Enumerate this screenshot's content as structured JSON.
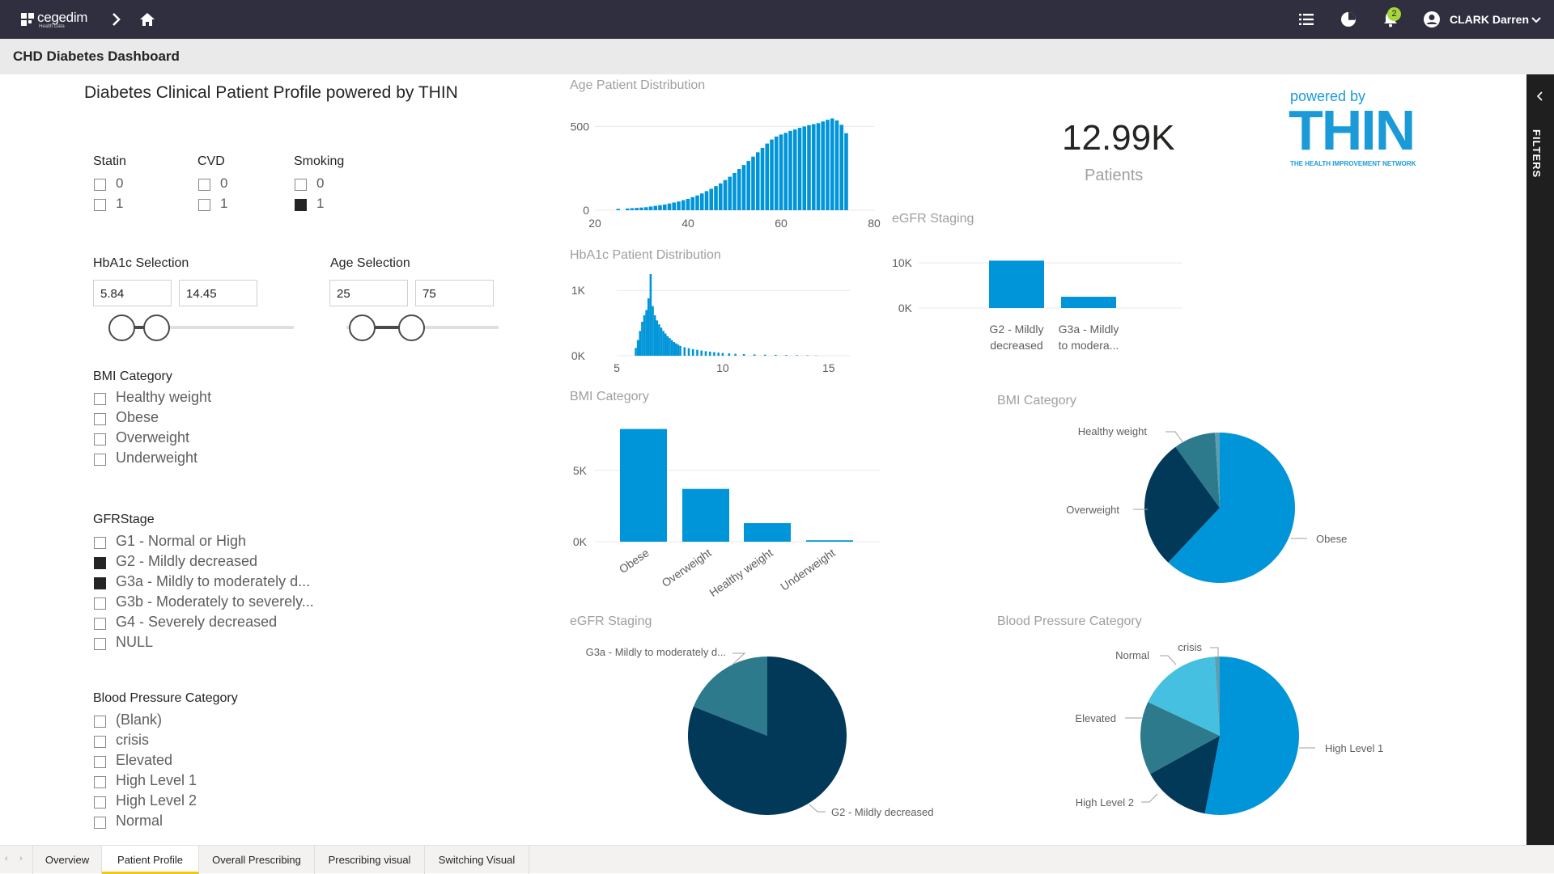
{
  "app": {
    "logo_text": "cegedim",
    "logo_sub": "Health Data",
    "user_name": "CLARK Darren",
    "notification_count": "2"
  },
  "page_title": "CHD Diabetes Dashboard",
  "filters_label": "FILTERS",
  "report": {
    "heading": "Diabetes Clinical Patient Profile powered by THIN",
    "slicers": {
      "statin": {
        "title": "Statin",
        "items": [
          {
            "label": "0",
            "checked": false
          },
          {
            "label": "1",
            "checked": false
          }
        ]
      },
      "cvd": {
        "title": "CVD",
        "items": [
          {
            "label": "0",
            "checked": false
          },
          {
            "label": "1",
            "checked": false
          }
        ]
      },
      "smoking": {
        "title": "Smoking",
        "items": [
          {
            "label": "0",
            "checked": false
          },
          {
            "label": "1",
            "checked": true
          }
        ]
      },
      "hba1c": {
        "title": "HbA1c Selection",
        "min": "5.84",
        "max": "14.45"
      },
      "age": {
        "title": "Age Selection",
        "min": "25",
        "max": "75"
      },
      "bmi": {
        "title": "BMI Category",
        "items": [
          {
            "label": "Healthy weight",
            "checked": false
          },
          {
            "label": "Obese",
            "checked": false
          },
          {
            "label": "Overweight",
            "checked": false
          },
          {
            "label": "Underweight",
            "checked": false
          }
        ]
      },
      "gfr": {
        "title": "GFRStage",
        "items": [
          {
            "label": "G1 - Normal or High",
            "checked": false
          },
          {
            "label": "G2 - Mildly decreased",
            "checked": true
          },
          {
            "label": "G3a - Mildly to moderately d...",
            "checked": true
          },
          {
            "label": "G3b - Moderately to severely...",
            "checked": false
          },
          {
            "label": "G4 - Severely decreased",
            "checked": false
          },
          {
            "label": "NULL",
            "checked": false
          }
        ]
      },
      "bp": {
        "title": "Blood Pressure Category",
        "items": [
          {
            "label": "(Blank)",
            "checked": false
          },
          {
            "label": "crisis",
            "checked": false
          },
          {
            "label": "Elevated",
            "checked": false
          },
          {
            "label": "High Level 1",
            "checked": false
          },
          {
            "label": "High Level 2",
            "checked": false
          },
          {
            "label": "Normal",
            "checked": false
          }
        ]
      }
    },
    "kpi": {
      "value": "12.99K",
      "label": "Patients"
    },
    "thin": {
      "powered_by": "powered by",
      "logo": "THIN",
      "tagline": "THE HEALTH IMPROVEMENT NETWORK"
    }
  },
  "chart_data": [
    {
      "type": "bar",
      "title": "Age Patient Distribution",
      "x_ticks": [
        "20",
        "40",
        "60",
        "80"
      ],
      "y_ticks": [
        "0",
        "500"
      ],
      "xlim": [
        20,
        80
      ],
      "ylim": [
        0,
        560
      ],
      "x": [
        25,
        27,
        28,
        29,
        30,
        31,
        32,
        33,
        34,
        35,
        36,
        37,
        38,
        39,
        40,
        41,
        42,
        43,
        44,
        45,
        46,
        47,
        48,
        49,
        50,
        51,
        52,
        53,
        54,
        55,
        56,
        57,
        58,
        59,
        60,
        61,
        62,
        63,
        64,
        65,
        66,
        67,
        68,
        69,
        70,
        71,
        72,
        73,
        74
      ],
      "values": [
        8,
        10,
        12,
        14,
        16,
        18,
        22,
        26,
        30,
        34,
        40,
        46,
        52,
        60,
        68,
        78,
        88,
        100,
        114,
        128,
        144,
        160,
        180,
        200,
        222,
        246,
        270,
        294,
        320,
        346,
        372,
        398,
        422,
        440,
        452,
        462,
        474,
        482,
        492,
        500,
        508,
        514,
        520,
        530,
        540,
        548,
        536,
        510,
        460
      ]
    },
    {
      "type": "bar",
      "title": "HbA1c Patient Distribution",
      "x_ticks": [
        "5",
        "10",
        "15"
      ],
      "y_ticks": [
        "0K",
        "1K"
      ],
      "xlim": [
        5,
        16
      ],
      "ylim": [
        0,
        1300
      ],
      "x": [
        5.9,
        6.0,
        6.1,
        6.2,
        6.3,
        6.4,
        6.5,
        6.6,
        6.7,
        6.8,
        6.9,
        7.0,
        7.1,
        7.2,
        7.3,
        7.4,
        7.5,
        7.6,
        7.7,
        7.8,
        7.9,
        8.0,
        8.2,
        8.4,
        8.6,
        8.8,
        9.0,
        9.2,
        9.4,
        9.6,
        9.8,
        10.0,
        10.3,
        10.6,
        11.0,
        11.5,
        12.0,
        12.5,
        13.0,
        13.5,
        14.0,
        14.4
      ],
      "values": [
        120,
        240,
        380,
        520,
        620,
        700,
        880,
        1250,
        760,
        620,
        540,
        480,
        430,
        380,
        340,
        300,
        270,
        240,
        210,
        190,
        170,
        150,
        130,
        115,
        100,
        90,
        80,
        70,
        62,
        55,
        48,
        42,
        36,
        30,
        25,
        20,
        16,
        13,
        10,
        8,
        6,
        4
      ]
    },
    {
      "type": "bar",
      "title": "eGFR Staging",
      "categories": [
        "G2 - Mildly decreased",
        "G3a - Mildly to modera..."
      ],
      "values": [
        10500,
        2500
      ],
      "y_ticks": [
        "0K",
        "10K"
      ],
      "ylim": [
        0,
        12000
      ]
    },
    {
      "type": "bar",
      "title": "BMI Category",
      "categories": [
        "Obese",
        "Overweight",
        "Healthy weight",
        "Underweight"
      ],
      "values": [
        7900,
        3700,
        1300,
        100
      ],
      "y_ticks": [
        "0K",
        "5K"
      ],
      "ylim": [
        0,
        8500
      ]
    },
    {
      "type": "pie",
      "title": "BMI Category",
      "slices": [
        {
          "label": "Obese",
          "value": 62,
          "color": "#0095d9"
        },
        {
          "label": "Overweight",
          "value": 28,
          "color": "#023858"
        },
        {
          "label": "Healthy weight",
          "value": 9,
          "color": "#2d7a8c"
        },
        {
          "label": "",
          "value": 1,
          "color": "#5b9fb0"
        }
      ]
    },
    {
      "type": "pie",
      "title": "eGFR Staging",
      "slices": [
        {
          "label": "G2 - Mildly decreased",
          "value": 81,
          "color": "#023858"
        },
        {
          "label": "G3a - Mildly to moderately d...",
          "value": 19,
          "color": "#2d7a8c"
        }
      ]
    },
    {
      "type": "pie",
      "title": "Blood Pressure Category",
      "slices": [
        {
          "label": "High Level 1",
          "value": 53,
          "color": "#0095d9"
        },
        {
          "label": "High Level 2",
          "value": 14,
          "color": "#023858"
        },
        {
          "label": "Elevated",
          "value": 15,
          "color": "#2d7a8c"
        },
        {
          "label": "Normal",
          "value": 17,
          "color": "#46c0e0"
        },
        {
          "label": "crisis",
          "value": 1,
          "color": "#5b9fb0"
        }
      ]
    }
  ],
  "tabs": [
    "Overview",
    "Patient Profile",
    "Overall Prescribing",
    "Prescribing visual",
    "Switching Visual"
  ],
  "active_tab": "Patient Profile",
  "colors": {
    "bar": "#0095d9",
    "topbar": "#302f3f",
    "accent": "#f2c811"
  }
}
